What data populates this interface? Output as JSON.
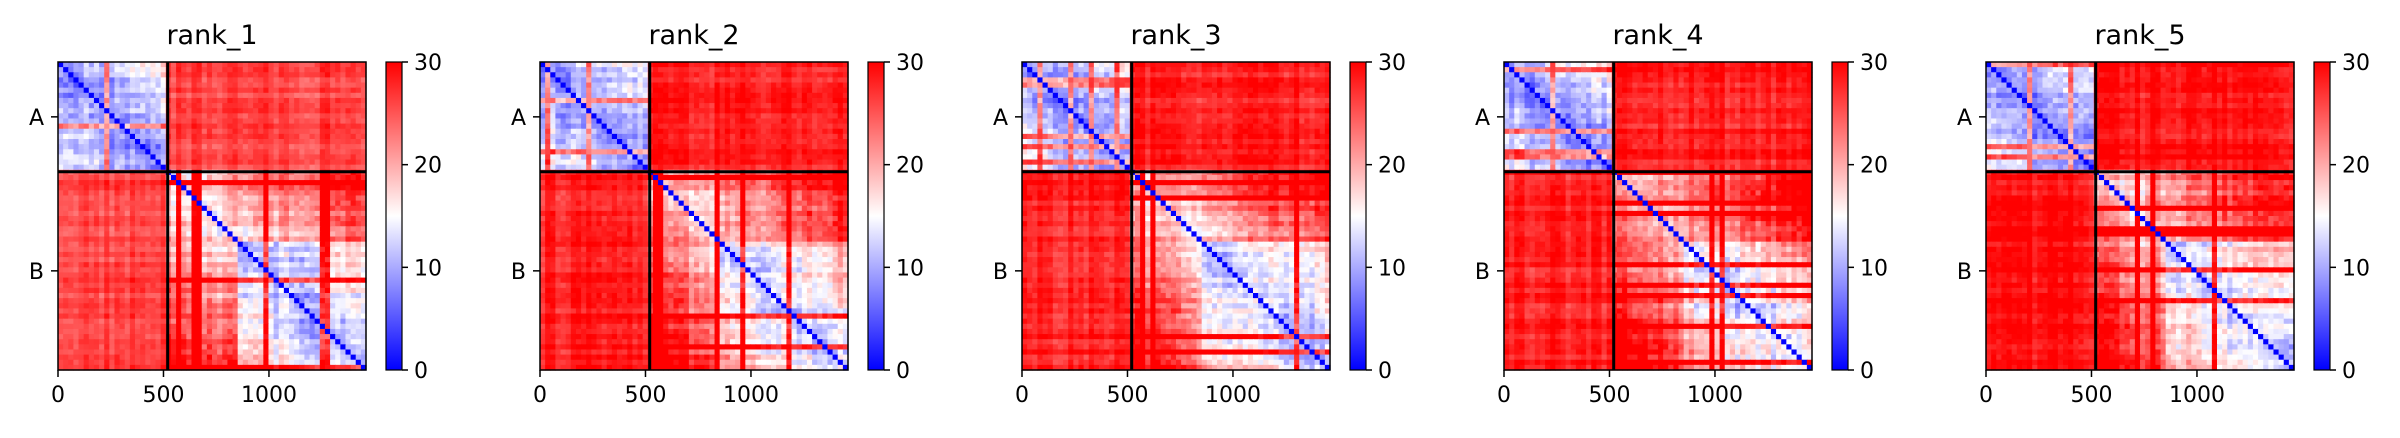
{
  "figure": {
    "panels": [
      {
        "title": "rank_1"
      },
      {
        "title": "rank_2"
      },
      {
        "title": "rank_3"
      },
      {
        "title": "rank_4"
      },
      {
        "title": "rank_5"
      }
    ]
  },
  "chart_data": {
    "type": "heatmap",
    "description_kind": "predicted aligned error matrices",
    "colormap": [
      "#0000ff",
      "#ffffff",
      "#ff0000"
    ],
    "color_range": [
      0,
      30
    ],
    "colorbar_ticks": [
      0,
      10,
      20,
      30
    ],
    "x_ticks": [
      0,
      500,
      1000
    ],
    "x_range": [
      0,
      1460
    ],
    "y_range": [
      0,
      1460
    ],
    "chain_boundary": 520,
    "y_tick_labels": [
      {
        "label": "A",
        "value": 260
      },
      {
        "label": "B",
        "value": 990
      }
    ],
    "grid": false,
    "panels": [
      {
        "title": "rank_1",
        "intra_A_mean": 7,
        "intra_B_mean": 12,
        "inter_chain_mean": 27
      },
      {
        "title": "rank_2",
        "intra_A_mean": 7,
        "intra_B_mean": 13,
        "inter_chain_mean": 29
      },
      {
        "title": "rank_3",
        "intra_A_mean": 7,
        "intra_B_mean": 13,
        "inter_chain_mean": 29
      },
      {
        "title": "rank_4",
        "intra_A_mean": 7,
        "intra_B_mean": 14,
        "inter_chain_mean": 29
      },
      {
        "title": "rank_5",
        "intra_A_mean": 7,
        "intra_B_mean": 13,
        "inter_chain_mean": 30
      }
    ]
  }
}
